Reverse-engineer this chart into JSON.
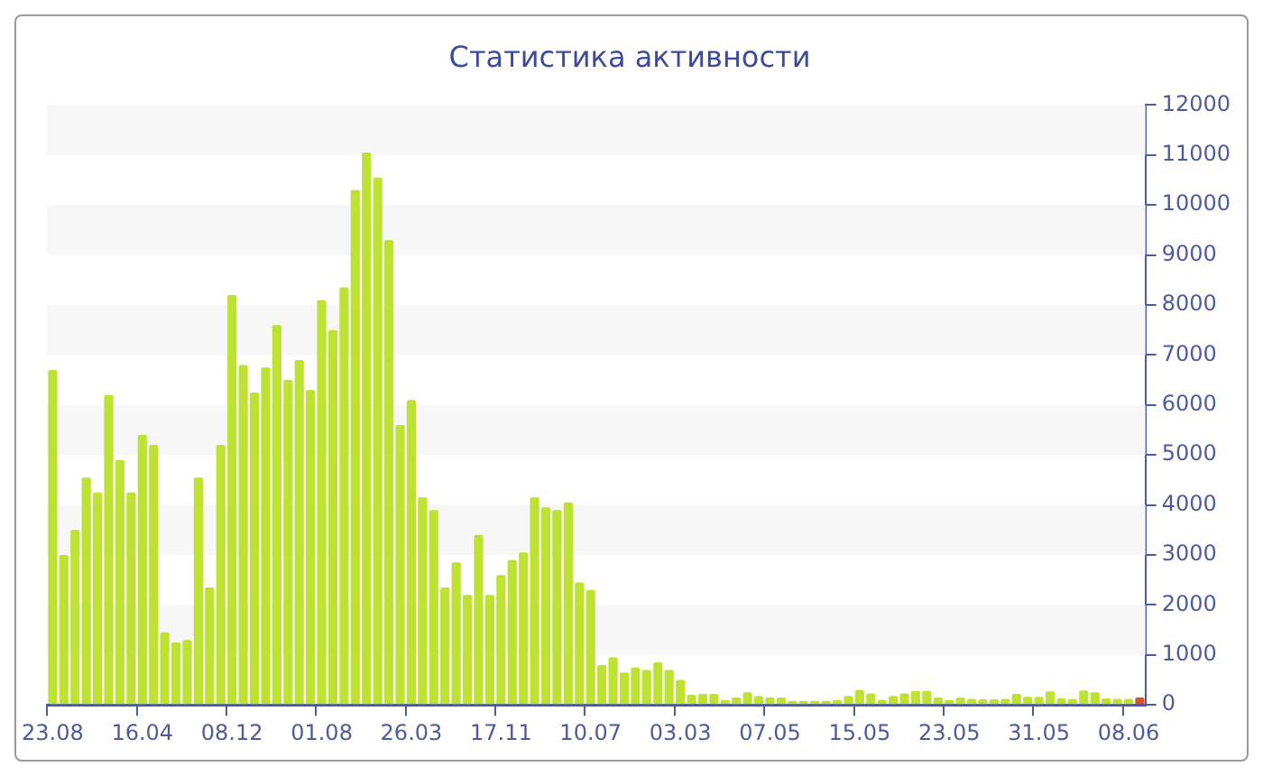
{
  "chart_data": {
    "type": "bar",
    "title": "Статистика активности",
    "categories": [
      "23.08",
      null,
      null,
      null,
      null,
      null,
      null,
      null,
      "16.04",
      null,
      null,
      null,
      null,
      null,
      null,
      null,
      "08.12",
      null,
      null,
      null,
      null,
      null,
      null,
      null,
      "01.08",
      null,
      null,
      null,
      null,
      null,
      null,
      null,
      "26.03",
      null,
      null,
      null,
      null,
      null,
      null,
      null,
      "17.11",
      null,
      null,
      null,
      null,
      null,
      null,
      null,
      "10.07",
      null,
      null,
      null,
      null,
      null,
      null,
      null,
      "03.03",
      null,
      null,
      null,
      null,
      null,
      null,
      null,
      "07.05",
      null,
      null,
      null,
      null,
      null,
      null,
      null,
      "15.05",
      null,
      null,
      null,
      null,
      null,
      null,
      null,
      "23.05",
      null,
      null,
      null,
      null,
      null,
      null,
      null,
      "31.05",
      null,
      null,
      null,
      null,
      null,
      null,
      null,
      "08.06",
      null
    ],
    "values": [
      6700,
      3000,
      3500,
      4550,
      4250,
      6200,
      4900,
      4250,
      5400,
      5200,
      1450,
      1250,
      1300,
      4550,
      2350,
      5200,
      8200,
      6800,
      6250,
      6750,
      7600,
      6500,
      6900,
      6300,
      8100,
      7500,
      8350,
      10300,
      11050,
      10550,
      9300,
      5600,
      6100,
      4150,
      3900,
      2350,
      2850,
      2200,
      3400,
      2200,
      2600,
      2900,
      3050,
      4150,
      3950,
      3900,
      4050,
      2450,
      2300,
      800,
      950,
      650,
      750,
      700,
      850,
      700,
      500,
      200,
      220,
      220,
      100,
      150,
      250,
      180,
      150,
      150,
      80,
      80,
      80,
      80,
      100,
      180,
      300,
      230,
      100,
      180,
      230,
      280,
      280,
      150,
      100,
      150,
      120,
      110,
      110,
      120,
      220,
      160,
      160,
      270,
      130,
      120,
      290,
      250,
      130,
      120,
      120,
      150
    ],
    "colors": [
      "#bde232",
      "#bde232",
      "#bde232",
      "#bde232",
      "#bde232",
      "#bde232",
      "#bde232",
      "#bde232",
      "#bde232",
      "#bde232",
      "#bde232",
      "#bde232",
      "#bde232",
      "#bde232",
      "#bde232",
      "#bde232",
      "#bde232",
      "#bde232",
      "#bde232",
      "#bde232",
      "#bde232",
      "#bde232",
      "#bde232",
      "#bde232",
      "#bde232",
      "#bde232",
      "#bde232",
      "#bde232",
      "#bde232",
      "#bde232",
      "#bde232",
      "#bde232",
      "#bde232",
      "#bde232",
      "#bde232",
      "#bde232",
      "#bde232",
      "#bde232",
      "#bde232",
      "#bde232",
      "#bde232",
      "#bde232",
      "#bde232",
      "#bde232",
      "#bde232",
      "#bde232",
      "#bde232",
      "#bde232",
      "#bde232",
      "#bde232",
      "#bde232",
      "#bde232",
      "#bde232",
      "#bde232",
      "#bde232",
      "#bde232",
      "#bde232",
      "#bde232",
      "#bde232",
      "#bde232",
      "#bde232",
      "#bde232",
      "#bde232",
      "#bde232",
      "#bde232",
      "#bde232",
      "#bde232",
      "#bde232",
      "#bde232",
      "#bde232",
      "#bde232",
      "#bde232",
      "#bde232",
      "#bde232",
      "#bde232",
      "#bde232",
      "#bde232",
      "#bde232",
      "#bde232",
      "#bde232",
      "#bde232",
      "#bde232",
      "#bde232",
      "#bde232",
      "#bde232",
      "#bde232",
      "#bde232",
      "#bde232",
      "#bde232",
      "#bde232",
      "#bde232",
      "#bde232",
      "#bde232",
      "#bde232",
      "#bde232",
      "#bde232",
      "#bde232",
      "#e0502a"
    ],
    "ylim": [
      0,
      12000
    ],
    "yticks": [
      0,
      1000,
      2000,
      3000,
      4000,
      5000,
      6000,
      7000,
      8000,
      9000,
      10000,
      11000,
      12000
    ],
    "bands": [
      {
        "axis": "y",
        "from": 1000,
        "to": 2000,
        "color": "#f7f7f7"
      },
      {
        "axis": "y",
        "from": 3000,
        "to": 4000,
        "color": "#f7f7f7"
      },
      {
        "axis": "y",
        "from": 5000,
        "to": 6000,
        "color": "#f7f7f7"
      },
      {
        "axis": "y",
        "from": 7000,
        "to": 8000,
        "color": "#f7f7f7"
      },
      {
        "axis": "y",
        "from": 9000,
        "to": 10000,
        "color": "#f7f7f7"
      },
      {
        "axis": "y",
        "from": 11000,
        "to": 12000,
        "color": "#f7f7f7"
      }
    ]
  }
}
